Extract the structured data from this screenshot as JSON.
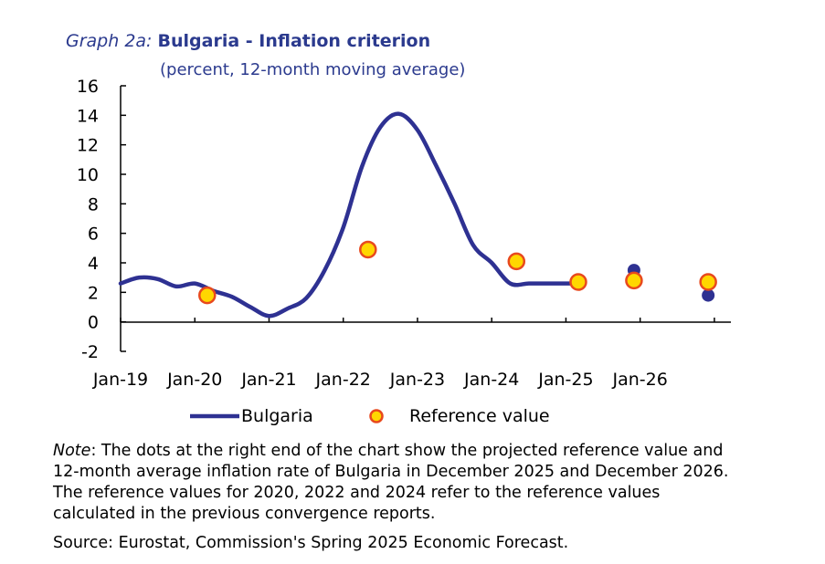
{
  "title_prefix": "Graph 2a:",
  "title": "Bulgaria - Inflation criterion",
  "subtitle": "(percent, 12-month moving average)",
  "note_label": "Note",
  "note_text": ": The dots at the right end of the chart show the projected reference value and 12-month average inflation rate of Bulgaria in December 2025 and December 2026. The reference values for 2020, 2022 and 2024 refer to the reference values calculated in the previous convergence reports.",
  "source": "Source: Eurostat, Commission's Spring 2025 Economic Forecast.",
  "colors": {
    "bulgaria": "#2e3192",
    "ref_fill": "#ffd700",
    "ref_stroke": "#e8491d"
  },
  "chart_data": {
    "type": "line",
    "ylim": [
      -2,
      16
    ],
    "yticks": [
      "-2",
      "0",
      "2",
      "4",
      "6",
      "8",
      "10",
      "12",
      "14",
      "16"
    ],
    "xtick_labels": [
      "Jan-19",
      "Jan-20",
      "Jan-21",
      "Jan-22",
      "Jan-23",
      "Jan-24",
      "Jan-25",
      "Jan-26"
    ],
    "legend": [
      "Bulgaria",
      "Reference value"
    ],
    "series": [
      {
        "name": "Bulgaria",
        "x": [
          "2019-01",
          "2019-04",
          "2019-07",
          "2019-10",
          "2020-01",
          "2020-04",
          "2020-07",
          "2020-10",
          "2021-01",
          "2021-04",
          "2021-07",
          "2021-10",
          "2022-01",
          "2022-04",
          "2022-07",
          "2022-10",
          "2023-01",
          "2023-04",
          "2023-07",
          "2023-10",
          "2024-01",
          "2024-04",
          "2024-07",
          "2024-10",
          "2025-01",
          "2025-03"
        ],
        "values": [
          2.6,
          3.0,
          2.9,
          2.4,
          2.6,
          2.1,
          1.7,
          1.0,
          0.4,
          0.9,
          1.6,
          3.5,
          6.4,
          10.5,
          13.2,
          14.1,
          13.0,
          10.6,
          8.0,
          5.2,
          4.0,
          2.6,
          2.6,
          2.6,
          2.6,
          2.6
        ]
      },
      {
        "name": "Reference value",
        "x": [
          "2020-03",
          "2022-05",
          "2024-05",
          "2025-03",
          "2025-12",
          "2026-12"
        ],
        "values": [
          1.8,
          4.9,
          4.1,
          2.7,
          2.8,
          2.7
        ]
      },
      {
        "x": [
          "2025-12",
          "2026-12"
        ],
        "values": [
          3.5,
          1.8
        ]
      }
    ]
  }
}
